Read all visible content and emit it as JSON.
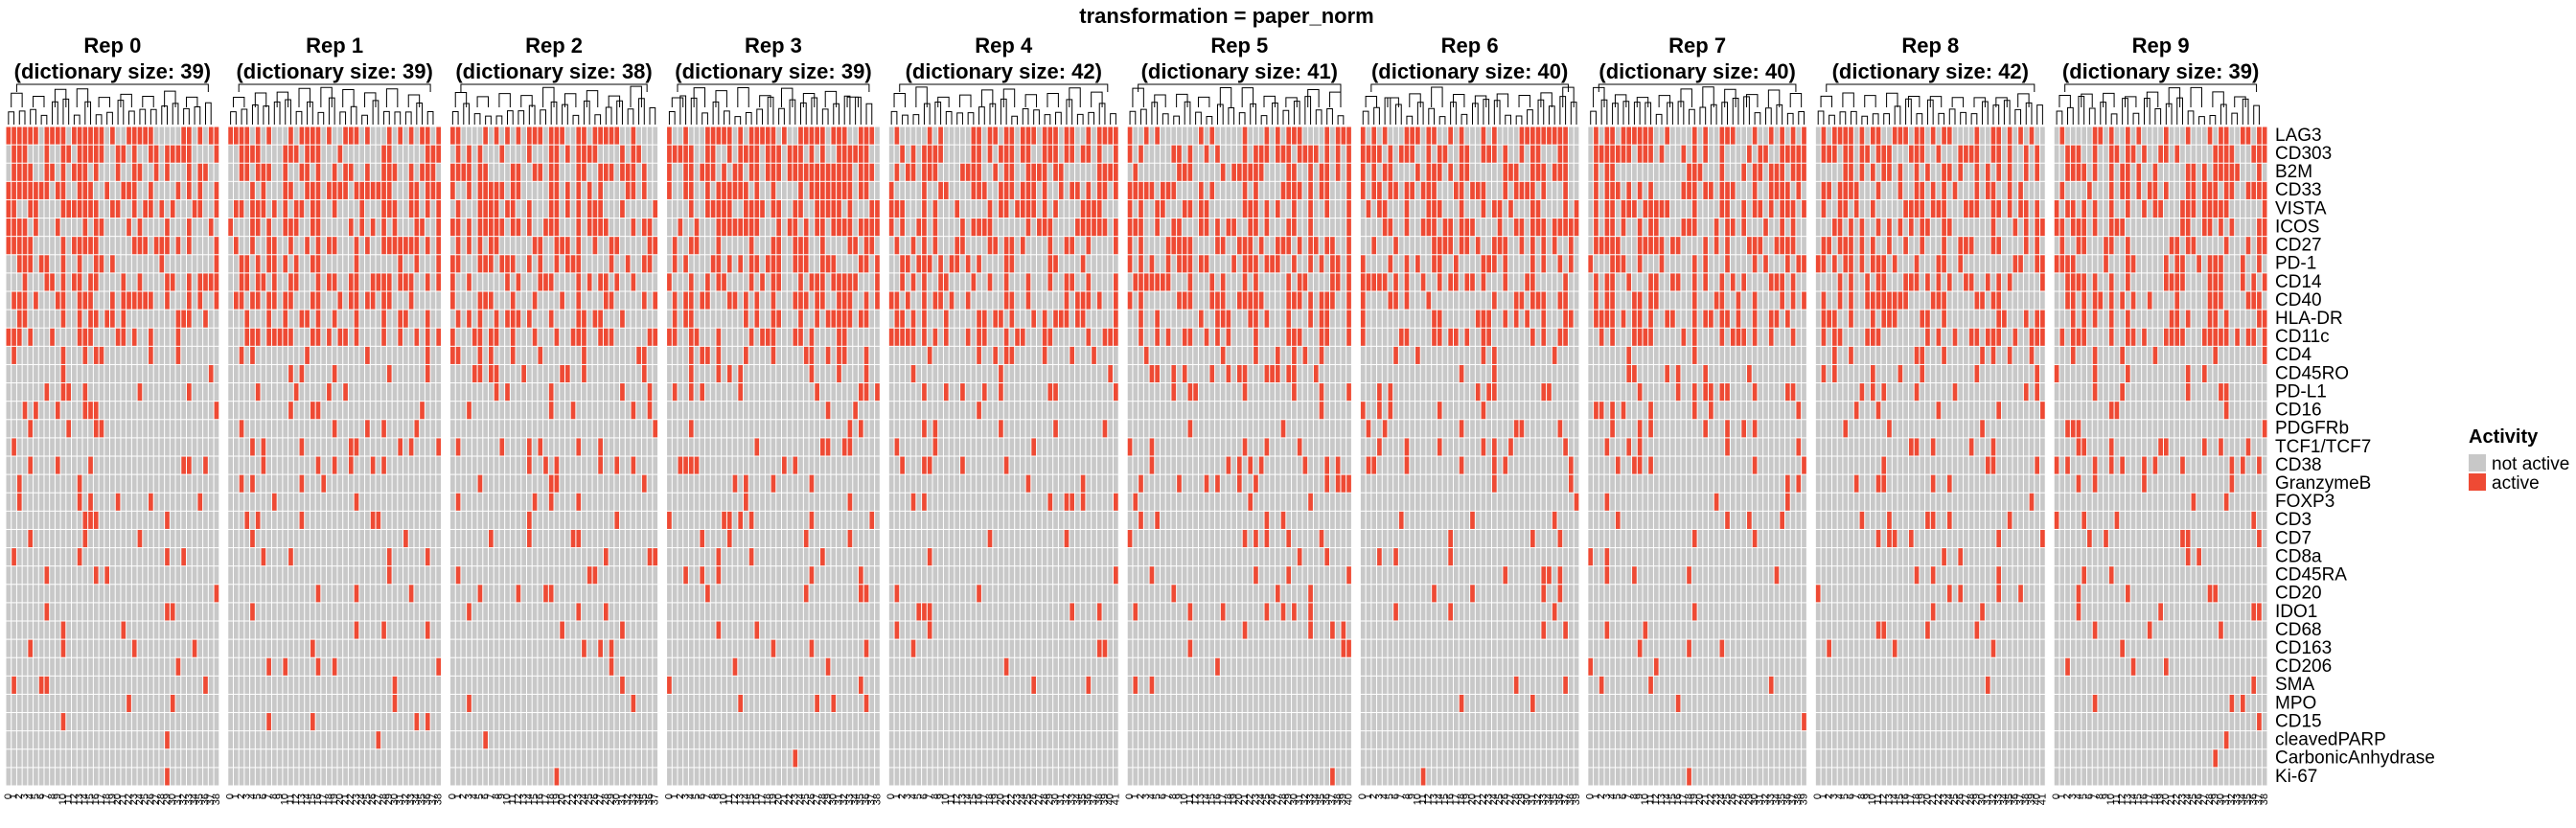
{
  "chart_data": {
    "type": "heatmap",
    "title": "transformation = paper_norm",
    "activity_colors": {
      "not active": "#c8c8c8",
      "active": "#ee4a34"
    },
    "rows": [
      "LAG3",
      "CD303",
      "B2M",
      "CD33",
      "VISTA",
      "ICOS",
      "CD27",
      "PD-1",
      "CD14",
      "CD40",
      "HLA-DR",
      "CD11c",
      "CD4",
      "CD45RO",
      "PD-L1",
      "CD16",
      "PDGFRb",
      "TCF1/TCF7",
      "CD38",
      "GranzymeB",
      "FOXP3",
      "CD3",
      "CD7",
      "CD8a",
      "CD45RA",
      "CD20",
      "IDO1",
      "CD68",
      "CD163",
      "CD206",
      "SMA",
      "MPO",
      "CD15",
      "cleavedPARP",
      "CarbonicAnhydrase",
      "Ki-67"
    ],
    "panels": [
      {
        "rep": "Rep 0",
        "subtitle": "(dictionary size: 39)",
        "columns": 39,
        "density": 0.2,
        "seed": 11
      },
      {
        "rep": "Rep 1",
        "subtitle": "(dictionary size: 39)",
        "columns": 39,
        "density": 0.2,
        "seed": 23
      },
      {
        "rep": "Rep 2",
        "subtitle": "(dictionary size: 38)",
        "columns": 38,
        "density": 0.22,
        "seed": 37
      },
      {
        "rep": "Rep 3",
        "subtitle": "(dictionary size: 39)",
        "columns": 39,
        "density": 0.2,
        "seed": 41
      },
      {
        "rep": "Rep 4",
        "subtitle": "(dictionary size: 42)",
        "columns": 42,
        "density": 0.19,
        "seed": 53
      },
      {
        "rep": "Rep 5",
        "subtitle": "(dictionary size: 41)",
        "columns": 41,
        "density": 0.19,
        "seed": 67
      },
      {
        "rep": "Rep 6",
        "subtitle": "(dictionary size: 40)",
        "columns": 40,
        "density": 0.2,
        "seed": 79
      },
      {
        "rep": "Rep 7",
        "subtitle": "(dictionary size: 40)",
        "columns": 40,
        "density": 0.2,
        "seed": 83
      },
      {
        "rep": "Rep 8",
        "subtitle": "(dictionary size: 42)",
        "columns": 42,
        "density": 0.19,
        "seed": 97
      },
      {
        "rep": "Rep 9",
        "subtitle": "(dictionary size: 39)",
        "columns": 39,
        "density": 0.2,
        "seed": 101
      }
    ],
    "legend": {
      "title": "Activity",
      "items": [
        {
          "label": "not active",
          "color": "#c8c8c8"
        },
        {
          "label": "active",
          "color": "#ee4a34"
        }
      ],
      "placement": "right"
    },
    "row_dendrogram": false,
    "column_dendrogram": true
  }
}
